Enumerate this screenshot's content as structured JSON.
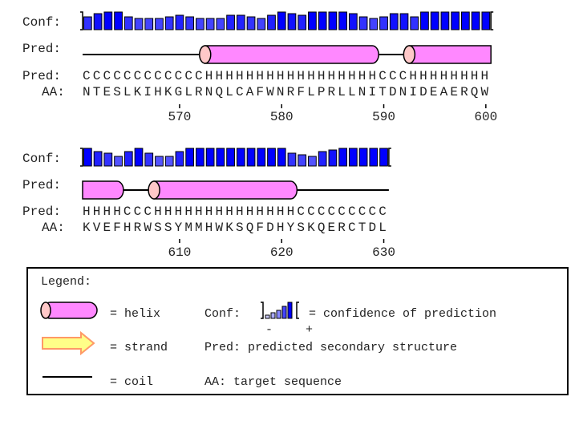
{
  "labels": {
    "conf": "Conf:",
    "pred": "Pred:",
    "aa": "AA:"
  },
  "blocks": [
    {
      "start": 561,
      "pred": "CCCCCCCCCCCCHHHHHHHHHHHHHHHHHCCCHHHHHHHH",
      "aa": "NTESLKIHKGLRNQLCAFWNRFLPRLLNITDNIDEAERQW",
      "conf": [
        6,
        8,
        9,
        9,
        6,
        5,
        5,
        5,
        6,
        7,
        6,
        5,
        5,
        5,
        7,
        7,
        6,
        5,
        7,
        9,
        8,
        7,
        9,
        9,
        9,
        9,
        8,
        6,
        5,
        6,
        8,
        8,
        6,
        9,
        9,
        9,
        9,
        9,
        9,
        9
      ],
      "ticks": [
        "570",
        "580",
        "590",
        "600"
      ]
    },
    {
      "start": 601,
      "pred": "HHHHCCCHHHHHHHHHHHHHHCCCCCCCCC",
      "aa": "KVEFHRWSSYMMHWKSQFDHYSKQERCTDL",
      "conf": [
        9,
        7,
        6,
        4,
        7,
        9,
        6,
        4,
        4,
        7,
        9,
        9,
        9,
        9,
        9,
        9,
        9,
        9,
        9,
        9,
        6,
        5,
        4,
        7,
        8,
        9,
        9,
        9,
        9,
        9
      ],
      "ticks": [
        "610",
        "620",
        "630"
      ]
    }
  ],
  "legend": {
    "title": "Legend:",
    "helix": "= helix",
    "strand": "= strand",
    "coil": "= coil",
    "conf_label": "Conf:",
    "conf_desc": "= confidence of prediction",
    "minus": "-",
    "plus": "+",
    "pred_desc": "Pred: predicted secondary structure",
    "aa_desc": "AA: target sequence"
  },
  "colors": {
    "helix": "#ff88ff",
    "helix_cap": "#ffc8c8",
    "strand": "#ffff88",
    "strand_edge": "#ff9966",
    "bar_high": "#0000ff",
    "bar_low": "#9999ff"
  }
}
